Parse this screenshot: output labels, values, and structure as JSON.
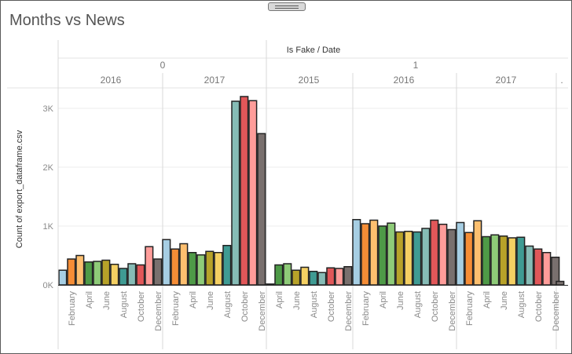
{
  "title": "Months vs News",
  "chart_data": {
    "type": "bar",
    "column_header": "Is Fake / Date",
    "ylabel": "Count of export_dataframe.csv",
    "ylim": [
      0,
      3250
    ],
    "yticks": [
      {
        "label": "0K",
        "value": 0
      },
      {
        "label": "1K",
        "value": 1000
      },
      {
        "label": "2K",
        "value": 2000
      },
      {
        "label": "3K",
        "value": 3000
      }
    ],
    "grid": true,
    "month_palette": {
      "1": "#a6cee3",
      "2": "#f58d36",
      "3": "#fdbf6f",
      "4": "#4e9a47",
      "5": "#8ecb78",
      "6": "#b7a229",
      "7": "#f5d063",
      "8": "#3f9b93",
      "9": "#86bcb6",
      "10": "#e15759",
      "11": "#ff9d9a",
      "12": "#79706e"
    },
    "groups": [
      {
        "label": "0",
        "years": [
          {
            "label": "2016",
            "months": [
              1,
              2,
              3,
              4,
              5,
              6,
              7,
              8,
              9,
              10,
              11,
              12
            ],
            "values": [
              250,
              440,
              500,
              390,
              400,
              420,
              350,
              280,
              360,
              340,
              650,
              440
            ],
            "tick_labels": [
              "February",
              "April",
              "June",
              "August",
              "October",
              "December"
            ]
          },
          {
            "label": "2017",
            "months": [
              1,
              2,
              3,
              4,
              5,
              6,
              7,
              8,
              9,
              10,
              11,
              12
            ],
            "values": [
              770,
              610,
              700,
              550,
              510,
              570,
              550,
              670,
              3120,
              3200,
              3130,
              2570
            ],
            "tick_labels": [
              "February",
              "April",
              "June",
              "August",
              "October",
              "December"
            ]
          }
        ]
      },
      {
        "label": "1",
        "years": [
          {
            "label": "2015",
            "months": [
              3,
              4,
              5,
              6,
              7,
              8,
              9,
              10,
              11,
              12
            ],
            "values": [
              15,
              340,
              360,
              250,
              300,
              230,
              210,
              290,
              280,
              310
            ],
            "tick_labels": [
              "April",
              "June",
              "August",
              "October",
              "December"
            ]
          },
          {
            "label": "2016",
            "months": [
              1,
              2,
              3,
              4,
              5,
              6,
              7,
              8,
              9,
              10,
              11,
              12
            ],
            "values": [
              1110,
              1040,
              1100,
              1000,
              1050,
              900,
              910,
              900,
              960,
              1100,
              1030,
              940
            ],
            "tick_labels": [
              "February",
              "April",
              "June",
              "August",
              "October",
              "December"
            ]
          },
          {
            "label": "2017",
            "months": [
              1,
              2,
              3,
              4,
              5,
              6,
              7,
              8,
              9,
              10,
              11,
              12
            ],
            "values": [
              1060,
              890,
              1090,
              820,
              850,
              830,
              800,
              810,
              660,
              610,
              550,
              470
            ],
            "tick_labels": [
              "February",
              "April",
              "June",
              "August",
              "October",
              "December"
            ]
          },
          {
            "label": ".",
            "months": [
              12
            ],
            "values": [
              60
            ],
            "tick_labels": []
          }
        ]
      }
    ]
  }
}
